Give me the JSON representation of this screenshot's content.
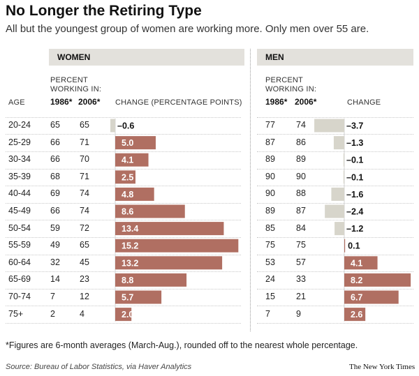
{
  "title": "No Longer the Retiring Type",
  "subtitle": "All but the youngest group of women are working more. Only men over 55 are.",
  "women_panel": {
    "label": "WOMEN",
    "percent_label_1": "PERCENT",
    "percent_label_2": "WORKING IN:",
    "year1": "1986*",
    "year2": "2006*",
    "change_label": "CHANGE (PERCENTAGE POINTS)"
  },
  "men_panel": {
    "label": "MEN",
    "percent_label_1": "PERCENT",
    "percent_label_2": "WORKING IN:",
    "year1": "1986*",
    "year2": "2006*",
    "change_label": "CHANGE"
  },
  "age_label": "AGE",
  "colors": {
    "positive_bar": "#b06f62",
    "negative_bar": "#d7d5cb",
    "band": "#e3e1dc"
  },
  "chart_data": [
    {
      "type": "bar",
      "name": "WOMEN",
      "categories": [
        "20-24",
        "25-29",
        "30-34",
        "35-39",
        "40-44",
        "45-49",
        "50-54",
        "55-59",
        "60-64",
        "65-69",
        "70-74",
        "75+"
      ],
      "values_1986": [
        65,
        66,
        66,
        68,
        69,
        66,
        59,
        49,
        32,
        14,
        7,
        2
      ],
      "values_2006": [
        65,
        71,
        70,
        71,
        74,
        74,
        72,
        65,
        45,
        23,
        12,
        4
      ],
      "change": [
        -0.6,
        5.0,
        4.1,
        2.5,
        4.8,
        8.6,
        13.4,
        15.2,
        13.2,
        8.8,
        5.7,
        2.0
      ],
      "change_labels": [
        "–0.6",
        "5.0",
        "4.1",
        "2.5",
        "4.8",
        "8.6",
        "13.4",
        "15.2",
        "13.2",
        "8.8",
        "5.7",
        "2.0"
      ]
    },
    {
      "type": "bar",
      "name": "MEN",
      "categories": [
        "20-24",
        "25-29",
        "30-34",
        "35-39",
        "40-44",
        "45-49",
        "50-54",
        "55-59",
        "60-64",
        "65-69",
        "70-74",
        "75+"
      ],
      "values_1986": [
        77,
        87,
        89,
        90,
        90,
        89,
        85,
        75,
        53,
        24,
        15,
        7
      ],
      "values_2006": [
        74,
        86,
        89,
        90,
        88,
        87,
        84,
        75,
        57,
        33,
        21,
        9
      ],
      "change": [
        -3.7,
        -1.3,
        -0.1,
        -0.1,
        -1.6,
        -2.4,
        -1.2,
        0.1,
        4.1,
        8.2,
        6.7,
        2.6
      ],
      "change_labels": [
        "–3.7",
        "–1.3",
        "–0.1",
        "–0.1",
        "–1.6",
        "–2.4",
        "–1.2",
        "0.1",
        "4.1",
        "8.2",
        "6.7",
        "2.6"
      ]
    }
  ],
  "footnote": "*Figures are 6-month averages (March-Aug.), rounded off to the nearest whole percentage.",
  "source": "Source: Bureau of Labor Statistics, via Haver Analytics",
  "credit": "The New York Times"
}
